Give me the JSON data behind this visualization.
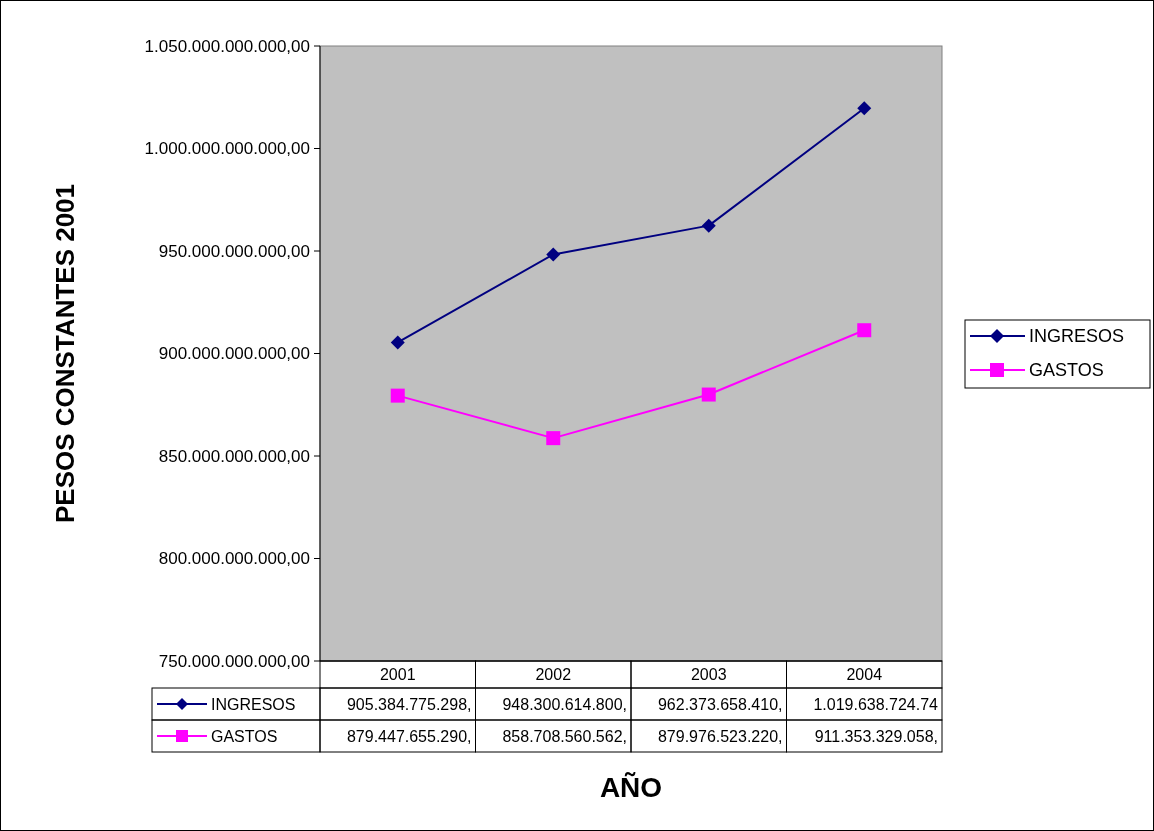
{
  "chart_data": {
    "type": "line",
    "xlabel": "AÑO",
    "ylabel": "PESOS CONSTANTES 2001",
    "categories": [
      "2001",
      "2002",
      "2003",
      "2004"
    ],
    "series": [
      {
        "name": "INGRESOS",
        "color": "#000080",
        "marker": "diamond",
        "values": [
          905384775298,
          948300614800,
          962373658410,
          1019638724740
        ],
        "value_labels": [
          "905.384.775.298,",
          "948.300.614.800,",
          "962.373.658.410,",
          "1.019.638.724.74"
        ]
      },
      {
        "name": "GASTOS",
        "color": "#ff00ff",
        "marker": "square",
        "values": [
          879447655290,
          858708560562,
          879976523220,
          911353329058
        ],
        "value_labels": [
          "879.447.655.290,",
          "858.708.560.562,",
          "879.976.523.220,",
          "911.353.329.058,"
        ]
      }
    ],
    "ylim": [
      750000000000,
      1050000000000
    ],
    "yticks": [
      {
        "value": 750000000000,
        "label": "750.000.000.000,00"
      },
      {
        "value": 800000000000,
        "label": "800.000.000.000,00"
      },
      {
        "value": 850000000000,
        "label": "850.000.000.000,00"
      },
      {
        "value": 900000000000,
        "label": "900.000.000.000,00"
      },
      {
        "value": 950000000000,
        "label": "950.000.000.000,00"
      },
      {
        "value": 1000000000000,
        "label": "1.000.000.000.000,00"
      },
      {
        "value": 1050000000000,
        "label": "1.050.000.000.000,00"
      }
    ],
    "legend": "right",
    "grid": false
  }
}
